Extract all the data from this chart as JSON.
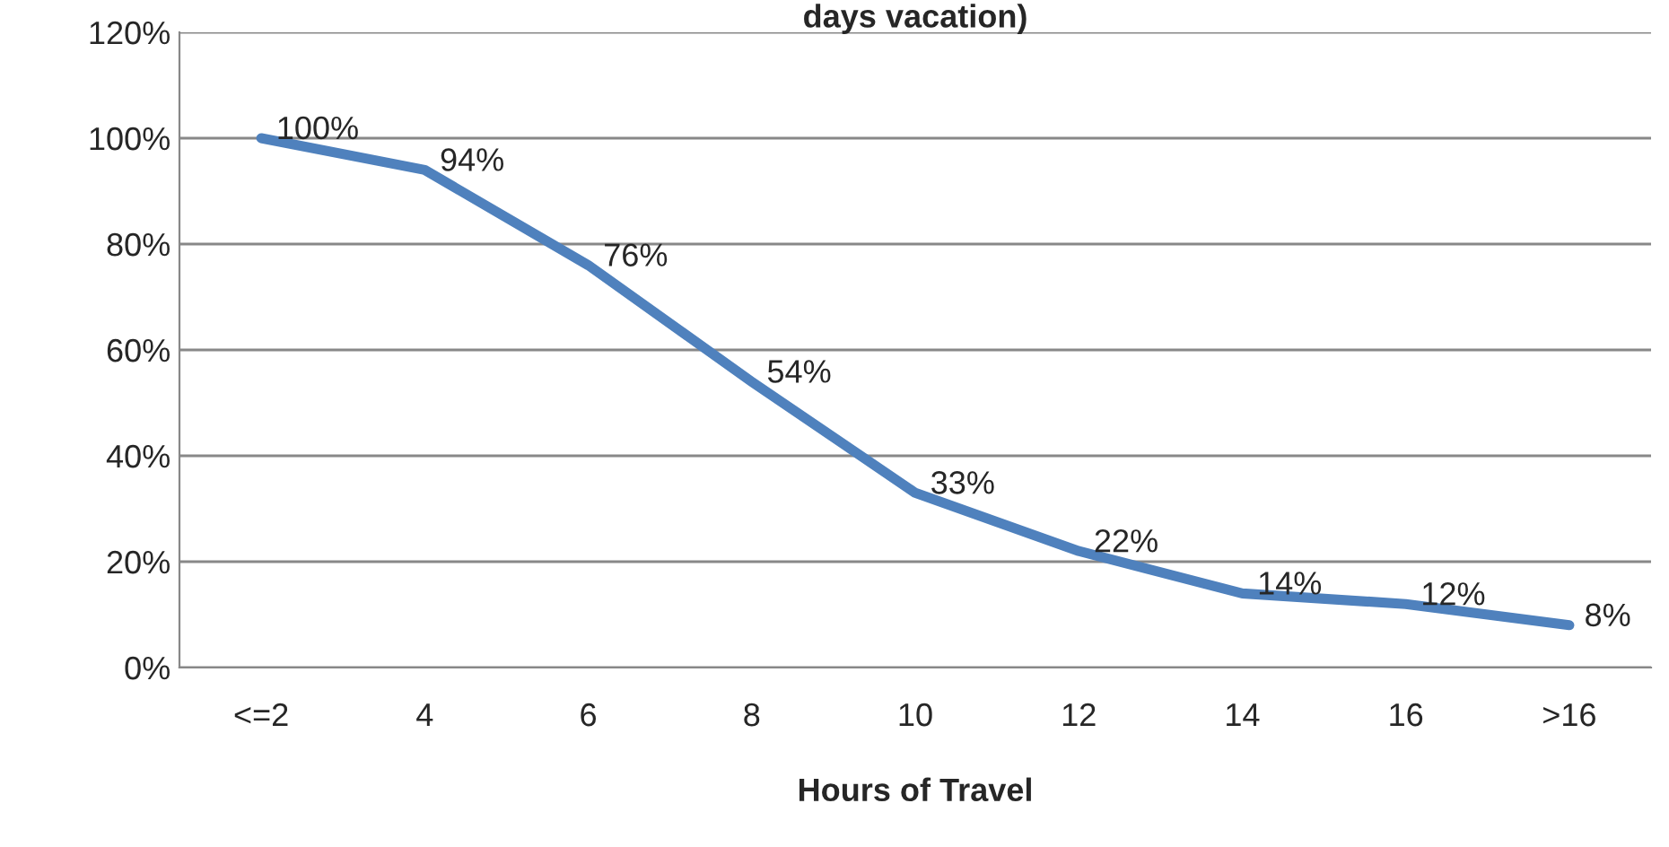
{
  "chart_data": {
    "type": "line",
    "title": "days vacation)",
    "xlabel": "Hours of Travel",
    "categories": [
      "<=2",
      "4",
      "6",
      "8",
      "10",
      "12",
      "14",
      "16",
      ">16"
    ],
    "series": [
      {
        "color": "#4f81bd",
        "values": [
          100,
          94,
          76,
          54,
          33,
          22,
          14,
          12,
          8
        ],
        "value_labels": [
          "100%",
          "94%",
          "76%",
          "54%",
          "33%",
          "22%",
          "14%",
          "12%",
          "8%"
        ]
      }
    ],
    "ylim": [
      0,
      120
    ],
    "yticks": [
      {
        "value": 0,
        "label": "0%"
      },
      {
        "value": 20,
        "label": "20%"
      },
      {
        "value": 40,
        "label": "40%"
      },
      {
        "value": 60,
        "label": "60%"
      },
      {
        "value": 80,
        "label": "80%"
      },
      {
        "value": 100,
        "label": "100%"
      },
      {
        "value": 120,
        "label": "120%"
      }
    ],
    "grid": "y",
    "legend": false,
    "marker": "none",
    "line_style": "solid"
  }
}
